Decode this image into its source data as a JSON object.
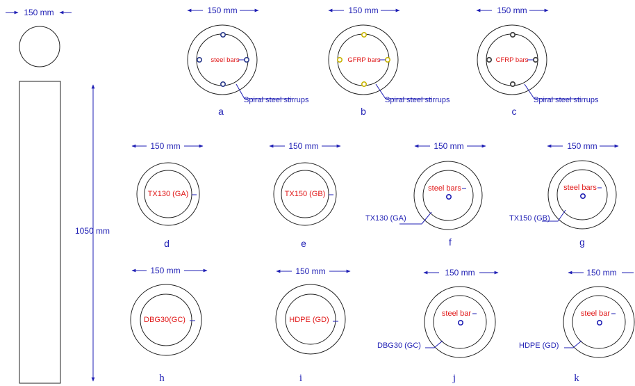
{
  "colors": {
    "dimension": "#1f1fb4",
    "label": "#e01414",
    "outline": "#222222"
  },
  "column": {
    "dim_diameter": "150 mm",
    "dim_height": "1050 mm"
  },
  "a": {
    "dim": "150 mm",
    "bars": "steel bars",
    "spiral": "Spiral steel stirrups",
    "letter": "a"
  },
  "b": {
    "dim": "150 mm",
    "bars": "GFRP bars",
    "spiral": "Spiral steel stirrups",
    "letter": "b"
  },
  "c": {
    "dim": "150 mm",
    "bars": "CFRP bars",
    "spiral": "Spiral steel stirrups",
    "letter": "c"
  },
  "d": {
    "dim": "150 mm",
    "inner": "TX130 (GA)",
    "letter": "d"
  },
  "e": {
    "dim": "150 mm",
    "inner": "TX150 (GB)",
    "letter": "e"
  },
  "f": {
    "dim": "150 mm",
    "inner": "steel bars",
    "ring": "TX130 (GA)",
    "letter": "f"
  },
  "g": {
    "dim": "150 mm",
    "inner": "steel bars",
    "ring": "TX150 (GB)",
    "letter": "g"
  },
  "h": {
    "dim": "150 mm",
    "inner": "DBG30(GC)",
    "letter": "h"
  },
  "i": {
    "dim": "150 mm",
    "inner": "HDPE (GD)",
    "letter": "i"
  },
  "j": {
    "dim": "150 mm",
    "inner": "steel bar",
    "ring": "DBG30 (GC)",
    "letter": "j"
  },
  "k": {
    "dim": "150 mm",
    "inner": "steel bar",
    "ring": "HDPE (GD)",
    "letter": "k"
  }
}
